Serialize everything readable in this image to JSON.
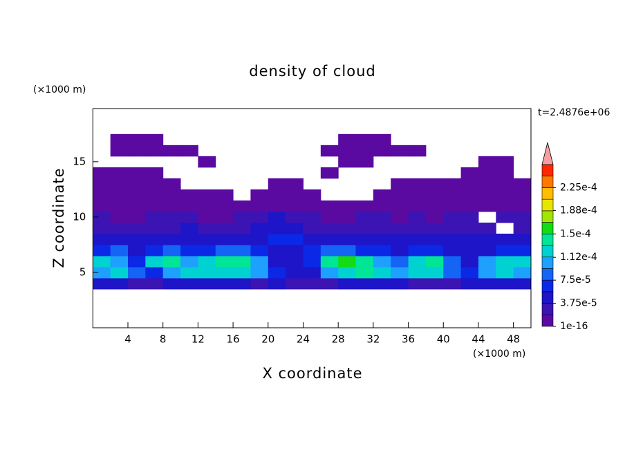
{
  "chart_data": {
    "type": "contour",
    "title": "density of cloud",
    "x_label": "X coordinate",
    "y_label": "Z coordinate",
    "x_unit": "(×1000 m)",
    "y_unit": "(×1000 m)",
    "time_label": "t=2.4876e+06",
    "xlim": [
      0,
      50
    ],
    "ylim": [
      0,
      19.8
    ],
    "xticks": [
      4,
      8,
      12,
      16,
      20,
      24,
      28,
      32,
      36,
      40,
      44,
      48
    ],
    "yticks": [
      5,
      10,
      15
    ],
    "x": [
      1,
      3,
      5,
      7,
      9,
      11,
      13,
      15,
      17,
      19,
      21,
      23,
      25,
      27,
      29,
      31,
      33,
      35,
      37,
      39,
      41,
      43,
      45,
      47,
      49
    ],
    "y": [
      4,
      5,
      6,
      7,
      8,
      9,
      10,
      11,
      12,
      13,
      14,
      15,
      16,
      17
    ],
    "z": [
      [
        4.5e-05,
        4.5e-05,
        2.5e-05,
        2.5e-05,
        4.5e-05,
        4.5e-05,
        4.5e-05,
        4.5e-05,
        4.5e-05,
        2.5e-05,
        4.5e-05,
        2.5e-05,
        2.5e-05,
        2.5e-05,
        4.5e-05,
        4.5e-05,
        4.5e-05,
        4.5e-05,
        2.5e-05,
        2.5e-05,
        2.5e-05,
        4.5e-05,
        4.5e-05,
        4.5e-05,
        4.5e-05
      ],
      [
        0.000105,
        0.000125,
        8.5e-05,
        6.5e-05,
        0.000105,
        0.000125,
        0.000125,
        0.000125,
        0.000125,
        0.000105,
        6.5e-05,
        4.5e-05,
        4.5e-05,
        0.000105,
        0.000125,
        0.000145,
        0.000125,
        0.000105,
        0.000125,
        0.000125,
        8.5e-05,
        6.5e-05,
        0.000105,
        0.000125,
        0.000105
      ],
      [
        0.000125,
        0.000105,
        6.5e-05,
        0.000125,
        0.000145,
        0.000105,
        0.000125,
        0.000145,
        0.000145,
        0.000105,
        4.5e-05,
        4.5e-05,
        6.5e-05,
        0.000145,
        0.00016,
        0.000145,
        0.000105,
        8.5e-05,
        0.000125,
        0.000145,
        8.5e-05,
        4.5e-05,
        0.000105,
        0.000125,
        0.000125
      ],
      [
        6.5e-05,
        8.5e-05,
        4.5e-05,
        6.5e-05,
        8.5e-05,
        6.5e-05,
        6.5e-05,
        8.5e-05,
        8.5e-05,
        6.5e-05,
        4.5e-05,
        4.5e-05,
        6.5e-05,
        8.5e-05,
        8.5e-05,
        6.5e-05,
        6.5e-05,
        4.5e-05,
        6.5e-05,
        6.5e-05,
        4.5e-05,
        4.5e-05,
        4.5e-05,
        6.5e-05,
        6.5e-05
      ],
      [
        4.5e-05,
        4.5e-05,
        4.5e-05,
        4.5e-05,
        4.5e-05,
        4.5e-05,
        4.5e-05,
        4.5e-05,
        4.5e-05,
        4.5e-05,
        6.5e-05,
        6.5e-05,
        4.5e-05,
        4.5e-05,
        4.5e-05,
        4.5e-05,
        4.5e-05,
        4.5e-05,
        4.5e-05,
        4.5e-05,
        4.5e-05,
        4.5e-05,
        4.5e-05,
        4.5e-05,
        4.5e-05
      ],
      [
        2.5e-05,
        2.5e-05,
        2.5e-05,
        2.5e-05,
        2.5e-05,
        4.5e-05,
        2.5e-05,
        2.5e-05,
        2.5e-05,
        4.5e-05,
        4.5e-05,
        4.5e-05,
        2.5e-05,
        2.5e-05,
        2.5e-05,
        2.5e-05,
        2.5e-05,
        2.5e-05,
        2.5e-05,
        2.5e-05,
        2.5e-05,
        2.5e-05,
        2.5e-05,
        null,
        2.5e-05
      ],
      [
        2.5e-05,
        5e-06,
        5e-06,
        2.5e-05,
        2.5e-05,
        2.5e-05,
        5e-06,
        5e-06,
        2.5e-05,
        2.5e-05,
        4.5e-05,
        2.5e-05,
        2.5e-05,
        5e-06,
        5e-06,
        2.5e-05,
        2.5e-05,
        5e-06,
        2.5e-05,
        5e-06,
        2.5e-05,
        2.5e-05,
        null,
        2.5e-05,
        2.5e-05
      ],
      [
        5e-06,
        5e-06,
        5e-06,
        5e-06,
        5e-06,
        5e-06,
        5e-06,
        5e-06,
        5e-06,
        5e-06,
        5e-06,
        5e-06,
        5e-06,
        5e-06,
        5e-06,
        5e-06,
        5e-06,
        5e-06,
        5e-06,
        5e-06,
        5e-06,
        5e-06,
        5e-06,
        5e-06,
        5e-06
      ],
      [
        5e-06,
        5e-06,
        5e-06,
        5e-06,
        5e-06,
        5e-06,
        5e-06,
        5e-06,
        null,
        5e-06,
        5e-06,
        5e-06,
        5e-06,
        null,
        null,
        null,
        5e-06,
        5e-06,
        5e-06,
        5e-06,
        5e-06,
        5e-06,
        5e-06,
        5e-06,
        5e-06
      ],
      [
        5e-06,
        5e-06,
        5e-06,
        5e-06,
        5e-06,
        null,
        null,
        null,
        null,
        null,
        5e-06,
        5e-06,
        null,
        null,
        null,
        null,
        null,
        5e-06,
        5e-06,
        5e-06,
        5e-06,
        5e-06,
        5e-06,
        5e-06,
        5e-06
      ],
      [
        5e-06,
        5e-06,
        5e-06,
        5e-06,
        null,
        null,
        null,
        null,
        null,
        null,
        null,
        null,
        null,
        5e-06,
        null,
        null,
        null,
        null,
        null,
        null,
        null,
        5e-06,
        5e-06,
        5e-06,
        null
      ],
      [
        null,
        null,
        null,
        null,
        null,
        null,
        5e-06,
        null,
        null,
        null,
        null,
        null,
        null,
        null,
        5e-06,
        5e-06,
        null,
        null,
        null,
        null,
        null,
        null,
        5e-06,
        5e-06,
        null
      ],
      [
        null,
        5e-06,
        5e-06,
        5e-06,
        5e-06,
        5e-06,
        null,
        null,
        null,
        null,
        null,
        null,
        null,
        5e-06,
        5e-06,
        5e-06,
        5e-06,
        5e-06,
        5e-06,
        null,
        null,
        null,
        null,
        null,
        null
      ],
      [
        null,
        5e-06,
        5e-06,
        5e-06,
        null,
        null,
        null,
        null,
        null,
        null,
        null,
        null,
        null,
        null,
        5e-06,
        5e-06,
        5e-06,
        null,
        null,
        null,
        null,
        null,
        null,
        null,
        null
      ]
    ],
    "levels": [
      1e-16,
      1.875e-05,
      3.75e-05,
      5.625e-05,
      7.5e-05,
      9.375e-05,
      0.0001125,
      0.00013125,
      0.00015,
      0.00016875,
      0.0001875,
      0.00020625,
      0.000225,
      0.00024375
    ],
    "colors": [
      "#5a0aa0",
      "#3c14b4",
      "#1e14c8",
      "#0a28e6",
      "#1464f5",
      "#1ea0ff",
      "#00d2d2",
      "#00e696",
      "#14dc14",
      "#a0e600",
      "#e6e600",
      "#ffbe00",
      "#ff7800",
      "#ff2800"
    ],
    "over_color": "#f5a0a0",
    "clim": [
      1e-16,
      0.0002625
    ],
    "cticks": [
      {
        "value": 1e-16,
        "label": "1e-16"
      },
      {
        "value": 3.75e-05,
        "label": "3.75e-5"
      },
      {
        "value": 7.5e-05,
        "label": "7.5e-5"
      },
      {
        "value": 0.000112,
        "label": "1.12e-4"
      },
      {
        "value": 0.00015,
        "label": "1.5e-4"
      },
      {
        "value": 0.000188,
        "label": "1.88e-4"
      },
      {
        "value": 0.000225,
        "label": "2.25e-4"
      }
    ]
  }
}
